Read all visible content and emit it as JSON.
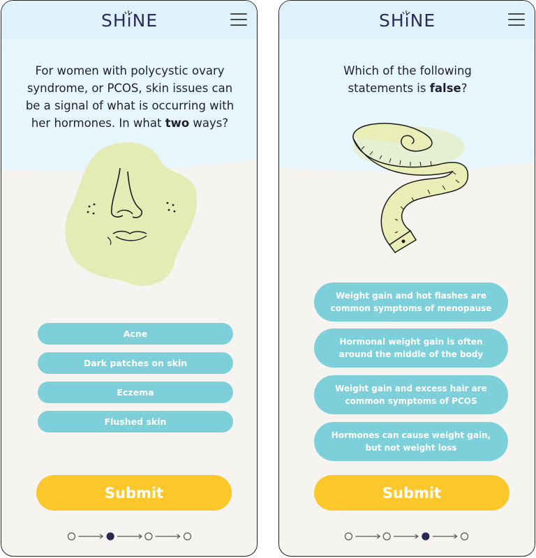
{
  "screens": [
    {
      "logo": "SHiNE",
      "question_parts": [
        "For women with polycystic ovary syndrome, or PCOS, skin issues can be a signal of what is occurring with her hormones. In what ",
        "two",
        " ways?"
      ],
      "illustration": "face-illustration",
      "options": [
        "Acne",
        "Dark patches on skin",
        "Eczema",
        "Flushed skin"
      ],
      "submit_label": "Submit",
      "progress": {
        "total": 4,
        "current": 2
      }
    },
    {
      "logo": "SHiNE",
      "question_parts": [
        "Which of the following statements is ",
        "false",
        "?"
      ],
      "illustration": "measuring-tape-illustration",
      "options": [
        "Weight gain and hot flashes are common symptoms of menopause",
        "Hormonal weight gain is often around the middle of the body",
        "Weight gain and excess hair are common symptoms of PCOS",
        "Hormones can cause weight gain, but not weight loss"
      ],
      "submit_label": "Submit",
      "progress": {
        "total": 4,
        "current": 3
      }
    }
  ],
  "colors": {
    "header_bg": "#dff2fb",
    "page_bg": "#f6f4f1",
    "option_bg": "#7dd0da",
    "submit_bg": "#fcc72a",
    "logo_text": "#2b2b5a",
    "active_dot": "#2b2850"
  },
  "icons": [
    "menu-icon",
    "progress-dot",
    "progress-arrow"
  ]
}
